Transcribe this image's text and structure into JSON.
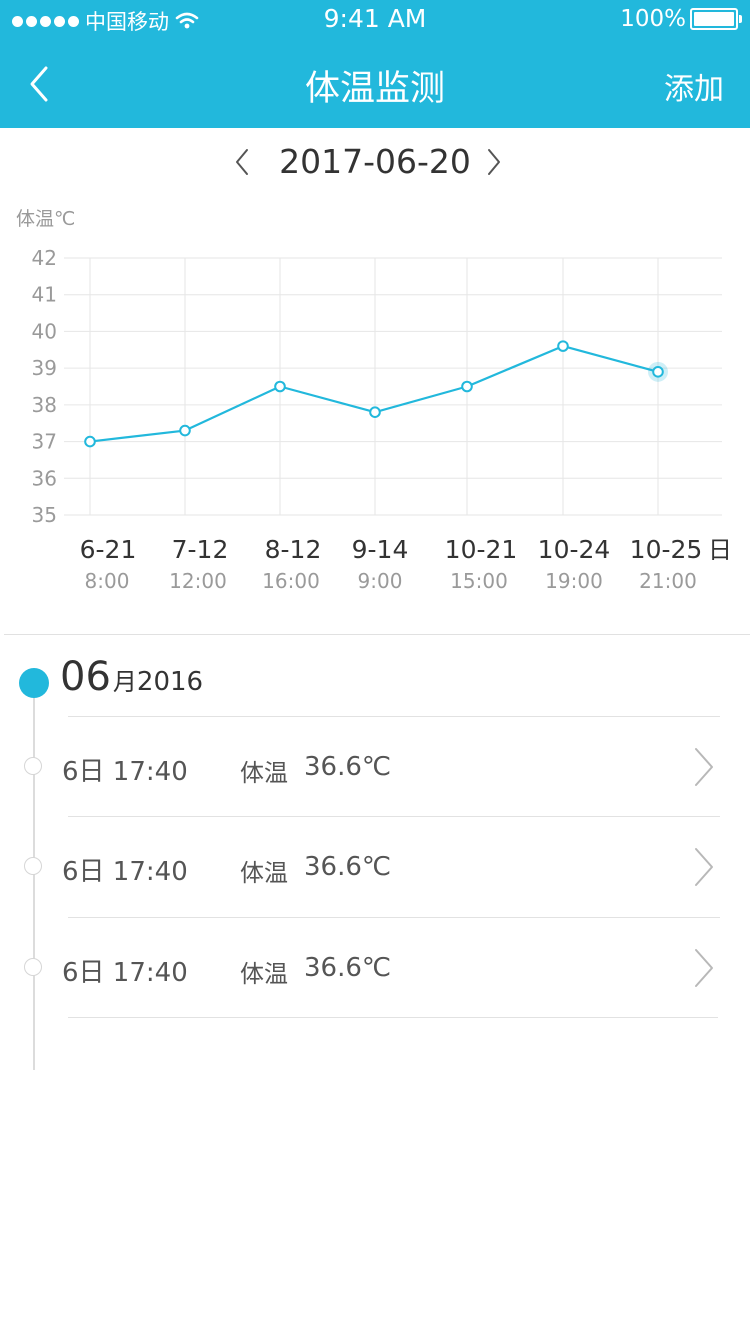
{
  "status_bar": {
    "carrier": "中国移动",
    "time": "9:41 AM",
    "battery": "100%"
  },
  "nav": {
    "title": "体温监测",
    "right_action": "添加"
  },
  "date_selector": {
    "date": "2017-06-20"
  },
  "colors": {
    "accent": "#22b8dc",
    "grid": "#e6e6e6"
  },
  "chart_data": {
    "type": "line",
    "ylabel": "体温℃",
    "yticks": [
      42,
      41,
      40,
      39,
      38,
      37,
      36,
      35
    ],
    "ylim": [
      35,
      42
    ],
    "categories": [
      "6-21",
      "7-12",
      "8-12",
      "9-14",
      "10-21",
      "10-24",
      "10-25"
    ],
    "times": [
      "8:00",
      "12:00",
      "16:00",
      "9:00",
      "15:00",
      "19:00",
      "21:00"
    ],
    "values": [
      37.0,
      37.3,
      38.5,
      37.8,
      38.5,
      39.6,
      38.9
    ],
    "x_unit": "日",
    "highlight_index": 6,
    "grid": true
  },
  "records": {
    "month": "06",
    "month_suffix": "月",
    "year": "2016",
    "items": [
      {
        "time": "6日 17:40",
        "label": "体温",
        "value": "36.6℃"
      },
      {
        "time": "6日 17:40",
        "label": "体温",
        "value": "36.6℃"
      },
      {
        "time": "6日 17:40",
        "label": "体温",
        "value": "36.6℃"
      }
    ]
  }
}
